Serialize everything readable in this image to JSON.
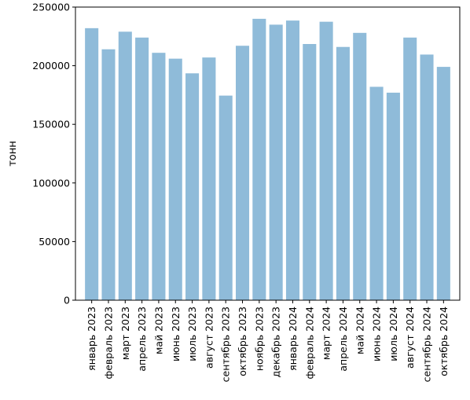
{
  "chart_data": {
    "type": "bar",
    "title": "",
    "xlabel": "",
    "ylabel": "тонн",
    "ylim": [
      0,
      250000
    ],
    "yticks": [
      0,
      50000,
      100000,
      150000,
      200000,
      250000
    ],
    "ytick_labels": [
      "0",
      "50000",
      "100000",
      "150000",
      "200000",
      "250000"
    ],
    "grid": false,
    "bar_color": "#8fbbd9",
    "categories": [
      "январь 2023",
      "февраль 2023",
      "март 2023",
      "апрель 2023",
      "май 2023",
      "июнь 2023",
      "июль 2023",
      "август 2023",
      "сентябрь 2023",
      "октябрь 2023",
      "ноябрь 2023",
      "декабрь 2023",
      "январь 2024",
      "февраль 2024",
      "март 2024",
      "апрель 2024",
      "май 2024",
      "июнь 2024",
      "июль 2024",
      "август 2024",
      "сентябрь 2024",
      "октябрь 2024"
    ],
    "values": [
      232000,
      214000,
      229000,
      224000,
      211000,
      206000,
      193500,
      207000,
      174500,
      217000,
      240000,
      235000,
      238500,
      218500,
      237500,
      216000,
      228000,
      182000,
      177000,
      224000,
      209500,
      199000
    ]
  }
}
